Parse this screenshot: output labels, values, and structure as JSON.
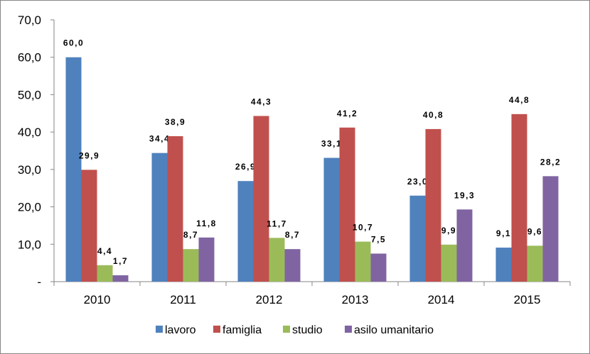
{
  "chart_data": {
    "type": "bar",
    "title": "",
    "xlabel": "",
    "ylabel": "",
    "categories": [
      "2010",
      "2011",
      "2012",
      "2013",
      "2014",
      "2015"
    ],
    "ylim": [
      0,
      70
    ],
    "y_ticks": [
      "-",
      "10,0",
      "20,0",
      "30,0",
      "40,0",
      "50,0",
      "60,0",
      "70,0"
    ],
    "grid": false,
    "legend_position": "bottom",
    "series": [
      {
        "name": "lavoro",
        "color": "#4F81BD",
        "values": [
          60.0,
          34.4,
          26.9,
          33.1,
          23.0,
          9.1
        ],
        "labels": [
          "60,0",
          "34,4",
          "26,9",
          "33,1",
          "23,0",
          "9,1"
        ]
      },
      {
        "name": "famiglia",
        "color": "#C0504D",
        "values": [
          29.9,
          38.9,
          44.3,
          41.2,
          40.8,
          44.8
        ],
        "labels": [
          "29,9",
          "38,9",
          "44,3",
          "41,2",
          "40,8",
          "44,8"
        ]
      },
      {
        "name": "studio",
        "color": "#9BBB59",
        "values": [
          4.4,
          8.7,
          11.7,
          10.7,
          9.9,
          9.6
        ],
        "labels": [
          "4,4",
          "8,7",
          "11,7",
          "10,7",
          "9,9",
          "9,6"
        ]
      },
      {
        "name": "asilo umanitario",
        "color": "#8064A2",
        "values": [
          1.7,
          11.8,
          8.7,
          7.5,
          19.3,
          28.2
        ],
        "labels": [
          "1,7",
          "11,8",
          "8,7",
          "7,5",
          "19,3",
          "28,2"
        ]
      }
    ]
  }
}
